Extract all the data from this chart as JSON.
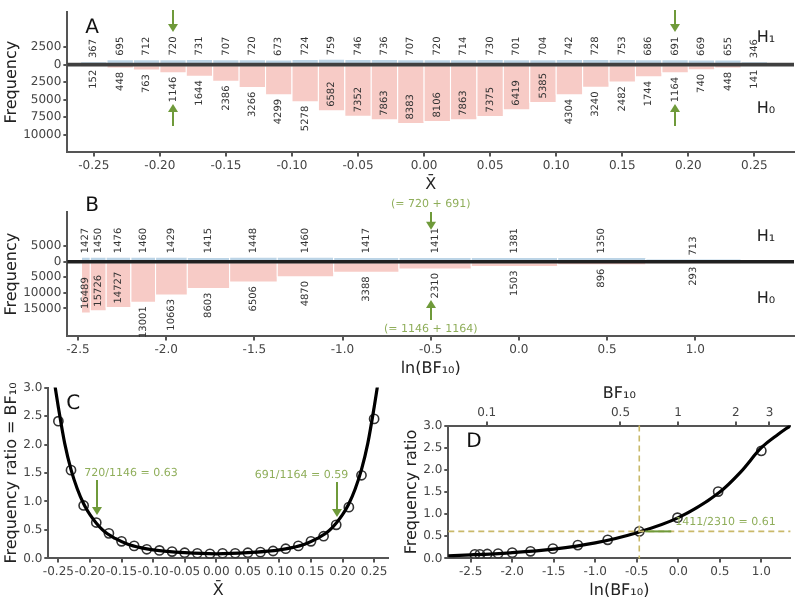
{
  "chart_data": [
    {
      "type": "histogram",
      "ylabel": "Frequency",
      "xlabel": "X̄",
      "bins": [
        -0.26,
        -0.24,
        -0.22,
        -0.2,
        -0.18,
        -0.16,
        -0.14,
        -0.12,
        -0.1,
        -0.08,
        -0.06,
        -0.04,
        -0.02,
        0,
        0.02,
        0.04,
        0.06,
        0.08,
        0.1,
        0.12,
        0.14,
        0.16,
        0.18,
        0.2,
        0.22,
        0.24,
        0.26
      ],
      "series": [
        {
          "name": "H₁",
          "color": "#bcd4e6",
          "values": [
            367,
            695,
            712,
            720,
            731,
            707,
            720,
            673,
            724,
            759,
            746,
            736,
            707,
            720,
            714,
            730,
            701,
            704,
            742,
            728,
            753,
            686,
            691,
            669,
            655,
            346
          ],
          "value_labels": [
            "367",
            "695",
            "712",
            "720",
            "731",
            "707",
            "720",
            "673",
            "724",
            "759",
            "746",
            "736",
            "707",
            "720",
            "714",
            "730",
            "701",
            "704",
            "742",
            "728",
            "753",
            "686",
            "691",
            "669",
            "655",
            "346"
          ]
        },
        {
          "name": "H₀",
          "color": "#f7cbc6",
          "values": [
            152,
            448,
            763,
            1146,
            1644,
            2386,
            3266,
            4299,
            5278,
            6582,
            7352,
            7863,
            8383,
            8106,
            7863,
            7375,
            6419,
            5385,
            4304,
            3240,
            2482,
            1744,
            1164,
            740,
            448,
            141
          ],
          "base": [
            -152,
            -448,
            -763,
            -1146,
            -1644,
            -2386,
            -3266,
            -4299,
            -5278,
            -6582,
            -7352,
            -7863,
            -8383,
            -8106,
            -7863,
            -7375,
            -6419,
            -5385,
            -4304,
            -3240,
            -2482,
            -1744,
            -1164,
            -740,
            -448,
            -141
          ],
          "value_labels": [
            "152",
            "448",
            "763",
            "1146",
            "1644",
            "2386",
            "3266",
            "4299",
            "5278",
            "6582",
            "7352",
            "7863",
            "8383",
            "8106",
            "7863",
            "7375",
            "6419",
            "5385",
            "4304",
            "3240",
            "2482",
            "1744",
            "1164",
            "740",
            "448",
            "141"
          ]
        }
      ],
      "xlim": [
        -0.27,
        0.28
      ],
      "xticks": [
        -0.25,
        {
          "value": -0.2,
          "label": "-0.20"
        },
        -0.15,
        {
          "value": -0.1,
          "label": "-0.10"
        },
        -0.05,
        {
          "value": 0,
          "label": "0.00"
        },
        0.05,
        {
          "value": 0.1,
          "label": "0.10"
        },
        0.15,
        {
          "value": 0.2,
          "label": "0.20"
        },
        0.25
      ],
      "ylim": [
        -12500,
        7500
      ],
      "yticks": [
        {
          "value": 2500,
          "label": "2500"
        },
        0,
        {
          "value": -2500,
          "label": "2500"
        },
        {
          "value": -5000,
          "label": "5000"
        },
        {
          "value": -7500,
          "label": "7500"
        },
        {
          "value": -10000,
          "label": "10000"
        }
      ],
      "ref_lines": [
        {
          "axis": "y",
          "value": 0,
          "color": "#404040"
        }
      ],
      "annotations": [
        "A"
      ]
    },
    {
      "type": "histogram",
      "ylabel": "Frequency",
      "xlabel": "ln(BF₁₀)",
      "bins": [
        -2.48,
        -2.43,
        -2.34,
        -2.2,
        -2.06,
        -1.88,
        -1.64,
        -1.37,
        -1.05,
        -0.68,
        -0.27,
        0.22,
        0.72,
        1.26
      ],
      "series": [
        {
          "name": "H₁",
          "color": "#bcd4e6",
          "values": [
            1427,
            1450,
            1476,
            1460,
            1429,
            1415,
            1448,
            1460,
            1417,
            1411,
            1381,
            1350,
            713
          ],
          "value_labels": [
            "1427",
            "1450",
            "1476",
            "1460",
            "1429",
            "1415",
            "1448",
            "1460",
            "1417",
            "1411",
            "1381",
            "1350",
            "713"
          ]
        },
        {
          "name": "H₀",
          "color": "#f7cbc6",
          "values": [
            16489,
            15726,
            14727,
            13001,
            10663,
            8603,
            6506,
            4870,
            3388,
            2310,
            1503,
            896,
            293
          ],
          "base": [
            -16489,
            -15726,
            -14727,
            -13001,
            -10663,
            -8603,
            -6506,
            -4870,
            -3388,
            -2310,
            -1503,
            -896,
            -293
          ],
          "value_labels": [
            "16489",
            "15726",
            "14727",
            "13001",
            "10663",
            "8603",
            "6506",
            "4870",
            "3388",
            "2310",
            "1503",
            "896",
            "293"
          ]
        }
      ],
      "xlim": [
        -2.56,
        1.56
      ],
      "xticks": [
        -2.5,
        {
          "value": -2,
          "label": "-2.0"
        },
        -1.5,
        {
          "value": -1,
          "label": "-1.0"
        },
        -0.5,
        {
          "value": 0,
          "label": "0.0"
        },
        0.5,
        {
          "value": 1,
          "label": "1.0"
        }
      ],
      "ylim": [
        -24000,
        16000
      ],
      "yticks": [
        {
          "value": 5000,
          "label": "5000"
        },
        0,
        {
          "value": -5000,
          "label": "5000"
        },
        {
          "value": -10000,
          "label": "10000"
        },
        {
          "value": -15000,
          "label": "15000"
        }
      ],
      "ref_lines": [
        {
          "axis": "y",
          "value": 0,
          "color": "#202020"
        }
      ],
      "annotations": [
        "B",
        "(= 720 + 691)",
        "(= 1146 + 1164)"
      ]
    },
    {
      "type": "scatter",
      "xlabel": "X̄",
      "ylabel": "Frequency ratio = BF₁₀",
      "series": [
        {
          "type": "line",
          "color": "#000000",
          "x": [
            -0.255,
            -0.25,
            -0.24,
            -0.23,
            -0.22,
            -0.21,
            -0.2,
            -0.18,
            -0.16,
            -0.14,
            -0.12,
            -0.1,
            -0.05,
            0,
            0.05,
            0.1,
            0.12,
            0.14,
            0.16,
            0.18,
            0.2,
            0.21,
            0.22,
            0.23,
            0.24,
            0.25,
            0.255
          ],
          "values": [
            3.0,
            2.65,
            2.02,
            1.56,
            1.22,
            0.96,
            0.77,
            0.5,
            0.35,
            0.25,
            0.19,
            0.15,
            0.1,
            0.08,
            0.1,
            0.15,
            0.19,
            0.25,
            0.35,
            0.5,
            0.77,
            0.96,
            1.22,
            1.56,
            2.02,
            2.65,
            3.0
          ]
        },
        {
          "type": "scatter",
          "marker": "circle",
          "color": "#333333",
          "x": [
            -0.25,
            -0.23,
            -0.21,
            -0.19,
            -0.17,
            -0.15,
            -0.13,
            -0.11,
            -0.09,
            -0.07,
            -0.05,
            -0.03,
            -0.01,
            0.01,
            0.03,
            0.05,
            0.07,
            0.09,
            0.11,
            0.13,
            0.15,
            0.17,
            0.19,
            0.21,
            0.23,
            0.25
          ],
          "values": [
            2.41,
            1.55,
            0.93,
            0.63,
            0.44,
            0.3,
            0.22,
            0.16,
            0.14,
            0.12,
            0.1,
            0.09,
            0.08,
            0.09,
            0.09,
            0.1,
            0.11,
            0.13,
            0.17,
            0.22,
            0.3,
            0.39,
            0.59,
            0.9,
            1.46,
            2.45
          ]
        }
      ],
      "xlim": [
        -0.266,
        0.272
      ],
      "xticks": [
        -0.25,
        {
          "value": -0.2,
          "label": "-0.20"
        },
        -0.15,
        {
          "value": -0.1,
          "label": "-0.10"
        },
        -0.05,
        {
          "value": 0,
          "label": "0.00"
        },
        0.05,
        {
          "value": 0.1,
          "label": "0.10"
        },
        0.15,
        {
          "value": 0.2,
          "label": "0.20"
        },
        0.25
      ],
      "ylim": [
        0,
        3
      ],
      "yticks": [
        {
          "value": 0,
          "label": "0.0"
        },
        0.5,
        {
          "value": 1,
          "label": "1.0"
        },
        1.5,
        {
          "value": 2,
          "label": "2.0"
        },
        2.5,
        {
          "value": 3,
          "label": "3.0"
        }
      ],
      "annotations": [
        "C",
        {
          "text": "720/1146 = 0.63",
          "x": -0.19,
          "y": 0.63
        },
        {
          "text": "691/1164 = 0.59",
          "x": 0.19,
          "y": 0.59
        }
      ]
    },
    {
      "type": "scatter",
      "xlabel": "ln(BF₁₀)",
      "ylabel": "Frequency ratio",
      "x2label": "BF₁₀",
      "log": "x2",
      "series": [
        {
          "type": "line",
          "color": "#000000",
          "x": [
            -2.77,
            -2.5,
            -2,
            -1.5,
            -1,
            -0.5,
            0,
            0.5,
            0.75,
            1,
            1.2,
            1.35
          ],
          "values": [
            0.06,
            0.08,
            0.13,
            0.21,
            0.35,
            0.58,
            0.92,
            1.5,
            1.95,
            2.5,
            2.8,
            3.0
          ]
        },
        {
          "type": "scatter",
          "marker": "circle",
          "color": "#333333",
          "x": [
            -2.45,
            -2.39,
            -2.3,
            -2.17,
            -2.0,
            -1.78,
            -1.51,
            -1.21,
            -0.85,
            -0.47,
            -0.01,
            0.48,
            1.0
          ],
          "values": [
            0.09,
            0.09,
            0.1,
            0.11,
            0.13,
            0.16,
            0.22,
            0.3,
            0.42,
            0.61,
            0.92,
            1.51,
            2.43
          ]
        }
      ],
      "xlim": [
        -2.77,
        1.35
      ],
      "xticks": [
        -2.5,
        {
          "value": -2,
          "label": "-2.0"
        },
        -1.5,
        {
          "value": -1,
          "label": "-1.0"
        },
        -0.5,
        {
          "value": 0,
          "label": "0.0"
        },
        0.5,
        {
          "value": 1,
          "label": "1.0"
        }
      ],
      "x2lim": [
        0.063,
        3.86
      ],
      "x2ticks": [
        0.1,
        0.5,
        1,
        2,
        3
      ],
      "ylim": [
        0,
        3
      ],
      "yticks": [
        {
          "value": 0,
          "label": "0.0"
        },
        0.5,
        {
          "value": 1,
          "label": "1.0"
        },
        1.5,
        {
          "value": 2,
          "label": "2.0"
        },
        2.5,
        {
          "value": 3,
          "label": "3.0"
        }
      ],
      "ref_lines": [
        {
          "axis": "x",
          "value": -0.47,
          "color": "#c9b96a",
          "line_style": "dashed"
        },
        {
          "axis": "y",
          "value": 0.61,
          "color": "#c9b96a",
          "line_style": "dashed"
        }
      ],
      "annotations": [
        "D",
        {
          "text": "1411/2310 = 0.61",
          "x": -0.47,
          "y": 0.61
        }
      ]
    }
  ]
}
